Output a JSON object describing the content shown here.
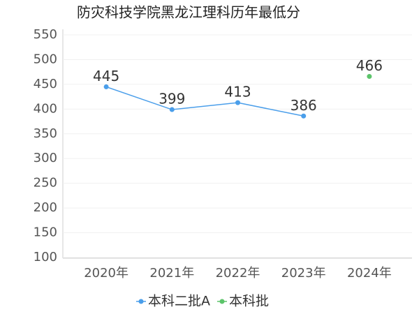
{
  "chart_data": {
    "type": "line",
    "title": "防灾科技学院黑龙江理科历年最低分",
    "categories": [
      "2020年",
      "2021年",
      "2022年",
      "2023年",
      "2024年"
    ],
    "series": [
      {
        "name": "本科二批A",
        "color": "#4a9eea",
        "values": [
          445,
          399,
          413,
          386,
          null
        ]
      },
      {
        "name": "本科批",
        "color": "#5cc46a",
        "values": [
          null,
          null,
          null,
          null,
          466
        ]
      }
    ],
    "ylim": [
      100,
      550
    ],
    "yticks": [
      100,
      150,
      200,
      250,
      300,
      350,
      400,
      450,
      500,
      550
    ],
    "grid": true
  }
}
